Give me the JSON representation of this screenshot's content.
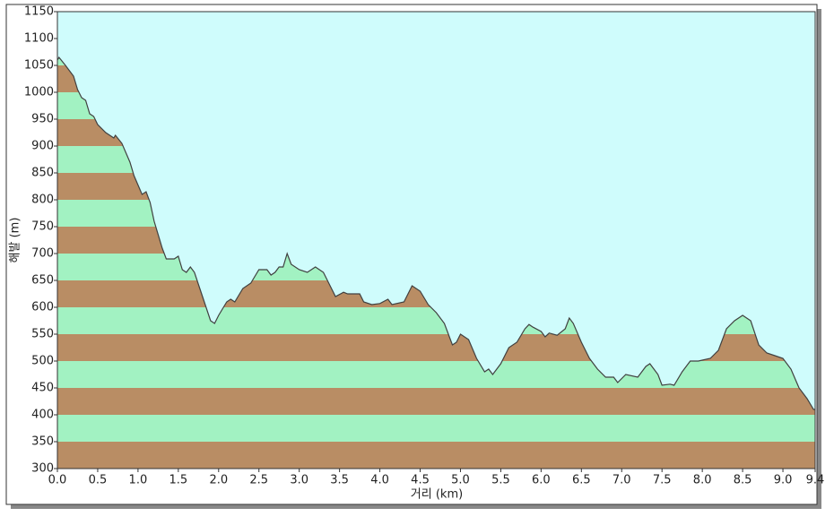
{
  "chart_data": {
    "type": "area",
    "y_label": "해발 (m)",
    "x_label": "거리 (km)",
    "x": [
      0.0,
      0.02,
      0.1,
      0.2,
      0.25,
      0.3,
      0.35,
      0.4,
      0.45,
      0.5,
      0.6,
      0.65,
      0.7,
      0.72,
      0.8,
      0.9,
      0.95,
      1.05,
      1.1,
      1.15,
      1.2,
      1.3,
      1.35,
      1.45,
      1.5,
      1.55,
      1.6,
      1.65,
      1.7,
      1.8,
      1.9,
      1.95,
      2.0,
      2.1,
      2.15,
      2.2,
      2.3,
      2.4,
      2.5,
      2.6,
      2.65,
      2.7,
      2.75,
      2.8,
      2.85,
      2.9,
      3.0,
      3.1,
      3.2,
      3.3,
      3.4,
      3.45,
      3.55,
      3.6,
      3.75,
      3.8,
      3.9,
      4.0,
      4.1,
      4.15,
      4.3,
      4.4,
      4.5,
      4.6,
      4.7,
      4.8,
      4.9,
      4.95,
      5.0,
      5.1,
      5.2,
      5.3,
      5.35,
      5.4,
      5.5,
      5.6,
      5.7,
      5.8,
      5.85,
      5.9,
      6.0,
      6.05,
      6.1,
      6.2,
      6.3,
      6.35,
      6.4,
      6.5,
      6.6,
      6.7,
      6.8,
      6.9,
      6.95,
      7.05,
      7.2,
      7.3,
      7.35,
      7.45,
      7.5,
      7.6,
      7.65,
      7.75,
      7.85,
      7.95,
      8.1,
      8.2,
      8.3,
      8.4,
      8.5,
      8.6,
      8.7,
      8.8,
      8.9,
      9.0,
      9.1,
      9.2,
      9.3,
      9.38,
      9.4
    ],
    "values": [
      1060,
      1065,
      1050,
      1030,
      1005,
      990,
      985,
      960,
      955,
      940,
      925,
      920,
      915,
      920,
      905,
      870,
      845,
      810,
      815,
      795,
      760,
      710,
      690,
      690,
      695,
      670,
      665,
      675,
      665,
      620,
      575,
      570,
      585,
      610,
      615,
      610,
      635,
      645,
      670,
      670,
      660,
      665,
      675,
      675,
      700,
      680,
      670,
      665,
      675,
      665,
      635,
      620,
      628,
      625,
      625,
      610,
      605,
      607,
      615,
      605,
      610,
      640,
      630,
      605,
      590,
      570,
      530,
      535,
      550,
      540,
      505,
      480,
      485,
      475,
      495,
      525,
      535,
      560,
      568,
      563,
      555,
      545,
      552,
      548,
      560,
      580,
      570,
      535,
      505,
      485,
      470,
      470,
      460,
      475,
      470,
      490,
      495,
      475,
      455,
      457,
      455,
      480,
      500,
      500,
      505,
      520,
      560,
      575,
      585,
      575,
      530,
      515,
      510,
      505,
      485,
      450,
      430,
      410,
      410
    ],
    "xlim": [
      0,
      9.4
    ],
    "ylim": [
      300,
      1150
    ],
    "xticks": [
      {
        "value": 0,
        "label": "0.0"
      },
      0.5,
      {
        "value": 1,
        "label": "1.0"
      },
      1.5,
      {
        "value": 2,
        "label": "2.0"
      },
      2.5,
      {
        "value": 3,
        "label": "3.0"
      },
      3.5,
      {
        "value": 4,
        "label": "4.0"
      },
      4.5,
      {
        "value": 5,
        "label": "5.0"
      },
      5.5,
      {
        "value": 6,
        "label": "6.0"
      },
      6.5,
      {
        "value": 7,
        "label": "7.0"
      },
      7.5,
      {
        "value": 8,
        "label": "8.0"
      },
      8.5,
      {
        "value": 9,
        "label": "9.0"
      },
      9.4
    ],
    "yticks": [
      300,
      350,
      400,
      450,
      500,
      550,
      600,
      650,
      700,
      750,
      800,
      850,
      900,
      950,
      1000,
      1050,
      1100,
      1150
    ],
    "band_colors": [
      "#b98d64",
      "#a2f2c2"
    ],
    "background": "#cffcfc",
    "color": "#404040"
  }
}
